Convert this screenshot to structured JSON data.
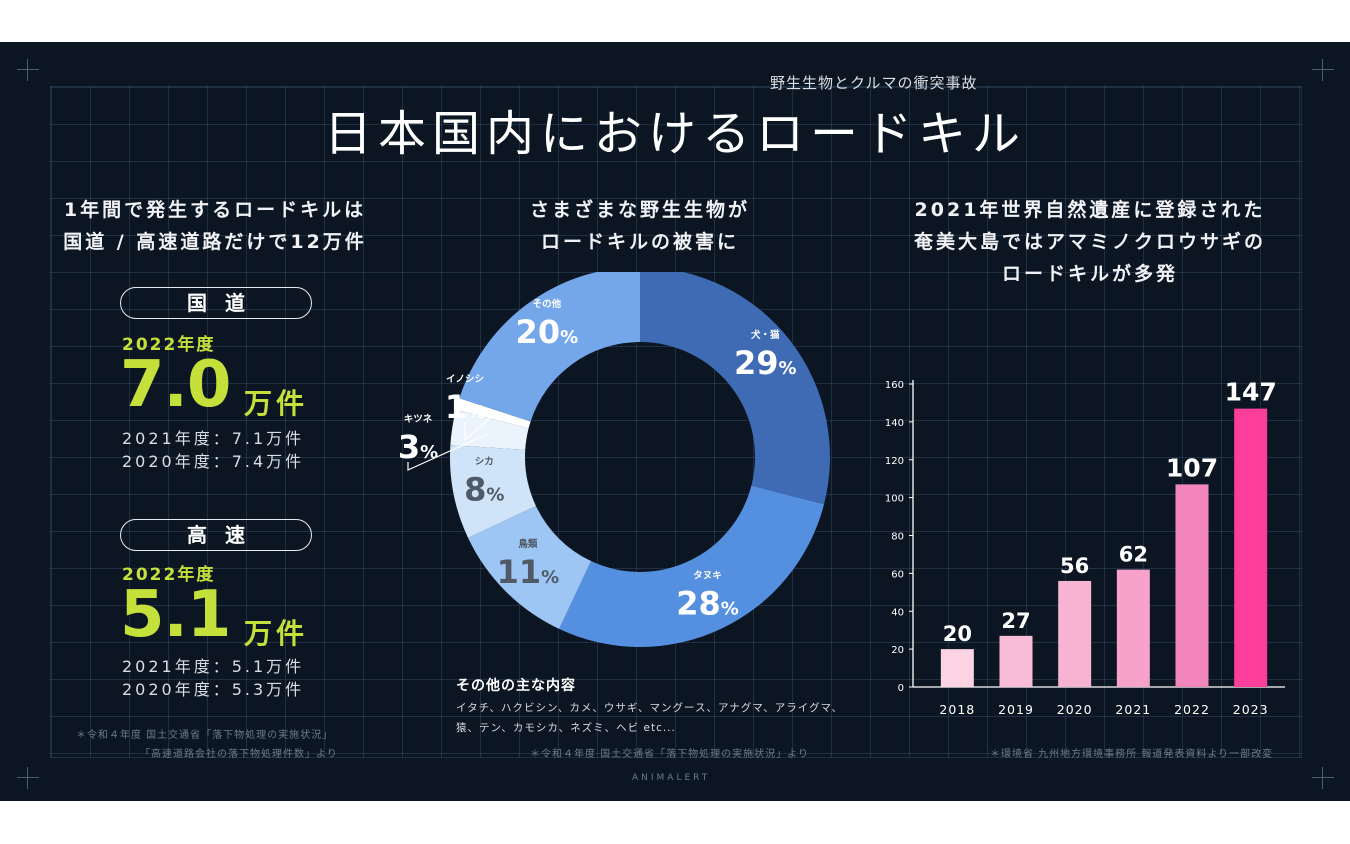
{
  "header": {
    "subtitle": "野生生物とクルマの衝突事故",
    "title": "日本国内におけるロードキル"
  },
  "left": {
    "heading_line1": "1年間で発生するロードキルは",
    "heading_line2": "国道 / 高速道路だけで12万件",
    "national": {
      "label": "国道",
      "year_label": "2022年度",
      "value": "7.0",
      "unit": "万件",
      "prev1": "2021年度：7.1万件",
      "prev2": "2020年度：7.4万件"
    },
    "highway": {
      "label": "高速",
      "year_label": "2022年度",
      "value": "5.1",
      "unit": "万件",
      "prev1": "2021年度：5.1万件",
      "prev2": "2020年度：5.3万件"
    },
    "note_line1": "＊令和４年度 国土交通省「落下物処理の実施状況」",
    "note_line2": "「高速道路会社の落下物処理件数」より"
  },
  "middle": {
    "heading_line1": "さまざまな野生生物が",
    "heading_line2": "ロードキルの被害に",
    "other_title": "その他の主な内容",
    "other_line1": "イタチ、ハクビシン、カメ、ウサギ、マングース、アナグマ、アライグマ、",
    "other_line2": "猿、テン、カモシカ、ネズミ、ヘビ etc...",
    "note": "＊令和４年度 国土交通省「落下物処理の実施状況」より"
  },
  "right": {
    "heading_line1": "2021年世界自然遺産に登録された",
    "heading_line2": "奄美大島ではアマミノクロウサギの",
    "heading_line3": "ロードキルが多発",
    "note": "＊環境省 九州地方環境事務所 報道発表資料より一部改変"
  },
  "brand": "ANIMALERT",
  "chart_data": [
    {
      "type": "pie",
      "title": "さまざまな野生生物がロードキルの被害に",
      "unit": "%",
      "categories": [
        "犬・猫",
        "タヌキ",
        "鳥類",
        "シカ",
        "キツネ",
        "イノシシ",
        "その他"
      ],
      "values": [
        29,
        28,
        11,
        8,
        3,
        1,
        20
      ],
      "colors": [
        "#3f6ab4",
        "#5590e0",
        "#9dc6f5",
        "#cfe3f9",
        "#ebf3fc",
        "#ffffff",
        "#74a6ea"
      ],
      "label_colors": [
        "#ffffff",
        "#ffffff",
        "#4f5a66",
        "#4f5a66",
        "#ffffff",
        "#ffffff",
        "#ffffff"
      ]
    },
    {
      "type": "bar",
      "title": "奄美大島のアマミノクロウサギのロードキル",
      "categories": [
        "2018",
        "2019",
        "2020",
        "2021",
        "2022",
        "2023"
      ],
      "values": [
        20,
        27,
        56,
        62,
        107,
        147
      ],
      "ylim": [
        0,
        160
      ],
      "yticks": [
        0,
        20,
        40,
        60,
        80,
        100,
        120,
        140,
        160
      ],
      "colors": [
        "#fbd3e2",
        "#f8bcd8",
        "#f6b3d2",
        "#f7a2ca",
        "#f385bd",
        "#fb3e9a"
      ]
    }
  ]
}
